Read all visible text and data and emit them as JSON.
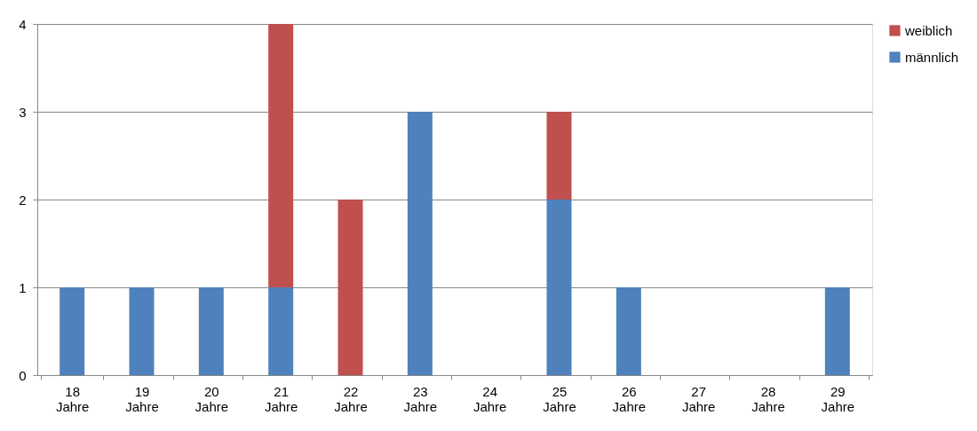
{
  "chart_data": {
    "type": "bar",
    "stacked": true,
    "categories": [
      "18 Jahre",
      "19 Jahre",
      "20 Jahre",
      "21 Jahre",
      "22 Jahre",
      "23 Jahre",
      "24 Jahre",
      "25 Jahre",
      "26 Jahre",
      "27 Jahre",
      "28 Jahre",
      "29 Jahre"
    ],
    "series": [
      {
        "name": "männlich",
        "color": "#4f81bd",
        "values": [
          1,
          1,
          1,
          1,
          0,
          3,
          0,
          2,
          1,
          0,
          0,
          1
        ]
      },
      {
        "name": "weiblich",
        "color": "#c0504d",
        "values": [
          0,
          0,
          0,
          3,
          2,
          0,
          0,
          1,
          0,
          0,
          0,
          0
        ]
      }
    ],
    "ylim": [
      0,
      4
    ],
    "yticks": [
      0,
      1,
      2,
      3,
      4
    ],
    "grid": "y",
    "legend": "right"
  }
}
